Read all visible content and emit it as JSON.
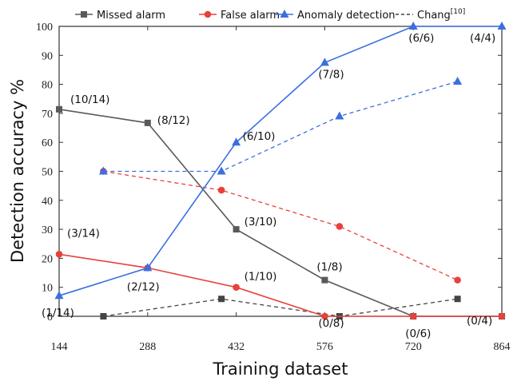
{
  "chart_data": {
    "type": "line",
    "xlabel": "Training dataset",
    "ylabel": "Detection accuracy %",
    "xlim": [
      144,
      864
    ],
    "ylim": [
      0,
      100
    ],
    "x_ticks": [
      144,
      288,
      432,
      576,
      720,
      864
    ],
    "y_ticks": [
      0,
      10,
      20,
      30,
      40,
      50,
      60,
      70,
      80,
      90,
      100
    ],
    "grid": false,
    "legend_position": "top",
    "series": [
      {
        "name": "Missed alarm",
        "color": "#595959",
        "marker": "square",
        "dash": "solid",
        "points": [
          {
            "x": 144,
            "y": 71.4,
            "label": "(10/14)"
          },
          {
            "x": 288,
            "y": 66.7,
            "label": "(8/12)"
          },
          {
            "x": 432,
            "y": 30,
            "label": "(3/10)"
          },
          {
            "x": 576,
            "y": 12.5,
            "label": "(1/8)"
          },
          {
            "x": 720,
            "y": 0,
            "label": "(0/6)"
          },
          {
            "x": 864,
            "y": 0,
            "label": "(0/4)"
          }
        ]
      },
      {
        "name": "False alarm",
        "color": "#e8413b",
        "marker": "circle",
        "dash": "solid",
        "points": [
          {
            "x": 144,
            "y": 21.4,
            "label": "(3/14)"
          },
          {
            "x": 288,
            "y": 16.7,
            "label": "(2/12)"
          },
          {
            "x": 432,
            "y": 10,
            "label": "(1/10)"
          },
          {
            "x": 576,
            "y": 0,
            "label": "(0/8)"
          },
          {
            "x": 720,
            "y": 0,
            "label": ""
          },
          {
            "x": 864,
            "y": 0,
            "label": ""
          }
        ]
      },
      {
        "name": "Anomaly detection",
        "color": "#3b6fe0",
        "marker": "triangle",
        "dash": "solid",
        "points": [
          {
            "x": 144,
            "y": 7.1,
            "label": "(1/14)"
          },
          {
            "x": 288,
            "y": 16.7,
            "label": ""
          },
          {
            "x": 432,
            "y": 60,
            "label": "(6/10)"
          },
          {
            "x": 576,
            "y": 87.5,
            "label": "(7/8)"
          },
          {
            "x": 720,
            "y": 100,
            "label": "(6/6)"
          },
          {
            "x": 864,
            "y": 100,
            "label": "(4/4)"
          }
        ]
      },
      {
        "name": "Chang",
        "name_superscript": "[10]",
        "color": "#444444",
        "marker": "square",
        "dash": "dashed",
        "points": [
          {
            "x": 216,
            "y": 0
          },
          {
            "x": 408,
            "y": 6
          },
          {
            "x": 600,
            "y": 0
          },
          {
            "x": 792,
            "y": 6
          }
        ]
      },
      {
        "name": "",
        "color": "#e8413b",
        "marker": "circle",
        "dash": "dashed",
        "points": [
          {
            "x": 216,
            "y": 50
          },
          {
            "x": 408,
            "y": 43.5
          },
          {
            "x": 600,
            "y": 31
          },
          {
            "x": 792,
            "y": 12.5
          }
        ]
      },
      {
        "name": "",
        "color": "#3b6fe0",
        "marker": "triangle",
        "dash": "dashed",
        "points": [
          {
            "x": 216,
            "y": 50
          },
          {
            "x": 408,
            "y": 50
          },
          {
            "x": 600,
            "y": 69
          },
          {
            "x": 792,
            "y": 81
          }
        ]
      }
    ]
  }
}
